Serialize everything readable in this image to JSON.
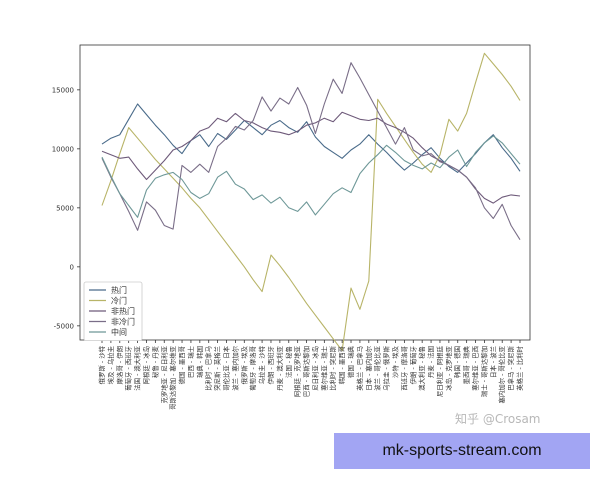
{
  "chart_data": {
    "type": "line",
    "title": "",
    "xlabel": "",
    "ylabel": "",
    "ylim": [
      -6200,
      18800
    ],
    "yticks": [
      -5000,
      0,
      5000,
      10000,
      15000
    ],
    "categories": [
      "俄罗斯 - 沙特",
      "埃及 - 乌拉圭",
      "摩洛哥 - 伊朗",
      "葡萄牙 - 西班牙",
      "法国 - 澳大利亚",
      "阿根廷 - 冰岛",
      "秘鲁 - 丹麦",
      "克罗地亚 - 尼日利亚",
      "哥斯达黎加 - 塞尔维亚",
      "德国 - 墨西哥",
      "巴西 - 瑞士",
      "瑞典 - 韩国",
      "比利时 - 巴拿马",
      "突尼斯 - 英格兰",
      "哥伦比亚 - 日本",
      "波兰 - 塞内加尔",
      "俄罗斯 - 埃及",
      "葡萄牙 - 摩洛哥",
      "乌拉圭 - 沙特",
      "伊朗 - 西班牙",
      "丹麦 - 澳大利亚",
      "法国 - 秘鲁",
      "阿根廷 - 克罗地亚",
      "巴西 - 哥斯达黎加",
      "尼日利亚 - 冰岛",
      "塞尔维亚 - 瑞士",
      "比利时 - 突尼斯",
      "韩国 - 墨西哥",
      "德国 - 瑞典",
      "英格兰 - 巴拿马",
      "日本 - 塞内加尔",
      "波兰 - 哥伦比亚",
      "乌拉圭 - 俄罗斯",
      "沙特 - 埃及",
      "西班牙 - 摩洛哥",
      "伊朗 - 葡萄牙",
      "澳大利亚 - 秘鲁",
      "丹麦 - 法国",
      "尼日利亚 - 阿根廷",
      "冰岛 - 克罗地亚",
      "韩国 - 德国",
      "墨西哥 - 瑞典",
      "塞尔维亚 - 巴西",
      "瑞士 - 哥斯达黎加",
      "日本 - 波兰",
      "塞内加尔 - 哥伦比亚",
      "巴拿马 - 突尼斯",
      "英格兰 - 比利时"
    ],
    "legend": {
      "position": "lower-left"
    },
    "series": [
      {
        "name": "热门",
        "color": "#4a6b8a",
        "values": [
          10400,
          10900,
          11200,
          12500,
          13800,
          12900,
          12000,
          11200,
          10300,
          9600,
          10700,
          11200,
          10200,
          11300,
          10800,
          11600,
          12400,
          11800,
          11200,
          12000,
          12400,
          11800,
          11400,
          12300,
          11000,
          10200,
          9700,
          9200,
          9900,
          10400,
          11200,
          10400,
          9700,
          8900,
          8200,
          8800,
          9500,
          10100,
          9200,
          8500,
          8000,
          8800,
          9600,
          10500,
          11200,
          10100,
          9200,
          8100
        ]
      },
      {
        "name": "冷门",
        "color": "#b8b468",
        "values": [
          5200,
          7300,
          9600,
          11800,
          10900,
          10000,
          9100,
          8300,
          7500,
          6700,
          5800,
          5000,
          4000,
          3000,
          2000,
          1000,
          0,
          -1100,
          -2100,
          1000,
          100,
          -900,
          -2000,
          -3100,
          -4100,
          -5100,
          -6100,
          -7100,
          -1800,
          -3600,
          -1200,
          14200,
          13000,
          11900,
          10800,
          9700,
          8700,
          8000,
          9500,
          12500,
          11500,
          13000,
          15600,
          18100,
          17200,
          16300,
          15300,
          14100
        ]
      },
      {
        "name": "非热门",
        "color": "#6e5a7a",
        "values": [
          9800,
          9500,
          9200,
          9300,
          8300,
          7400,
          8200,
          9000,
          9900,
          10200,
          10700,
          11500,
          11800,
          12600,
          12300,
          13000,
          12400,
          12200,
          11800,
          11500,
          11400,
          11200,
          11500,
          12000,
          12200,
          12600,
          12300,
          13100,
          12800,
          12500,
          12400,
          12600,
          12100,
          11800,
          11400,
          10900,
          10100,
          9400,
          9000,
          8600,
          8200,
          7600,
          6600,
          5800,
          5400,
          5900,
          6100,
          6000
        ]
      },
      {
        "name": "非冷门",
        "color": "#7a6e88",
        "values": [
          9200,
          7600,
          6200,
          4700,
          3100,
          5500,
          4800,
          3500,
          3200,
          8600,
          8000,
          8700,
          8000,
          10200,
          10900,
          11900,
          11600,
          12400,
          14400,
          13200,
          14300,
          13800,
          15200,
          13700,
          11300,
          13800,
          15900,
          14700,
          17300,
          16000,
          14600,
          13200,
          11800,
          10400,
          11800,
          9900,
          9400,
          9600,
          8900,
          8600,
          8200,
          7600,
          6700,
          5000,
          4100,
          5300,
          3500,
          2300
        ]
      },
      {
        "name": "中间",
        "color": "#6e9898",
        "values": [
          9300,
          7700,
          6200,
          5200,
          4200,
          6500,
          7500,
          7800,
          8000,
          7400,
          6300,
          5800,
          6200,
          7600,
          8100,
          7000,
          6600,
          5700,
          6100,
          5400,
          5900,
          5000,
          4700,
          5500,
          4400,
          5300,
          6200,
          6700,
          6300,
          7900,
          8800,
          9500,
          10300,
          9700,
          9000,
          8600,
          8300,
          8800,
          8400,
          9300,
          9900,
          8500,
          9700,
          10500,
          11100,
          10500,
          9600,
          8700
        ]
      }
    ]
  },
  "watermark": "知乎 @Crosam",
  "banner": "mk-sports-stream.com"
}
